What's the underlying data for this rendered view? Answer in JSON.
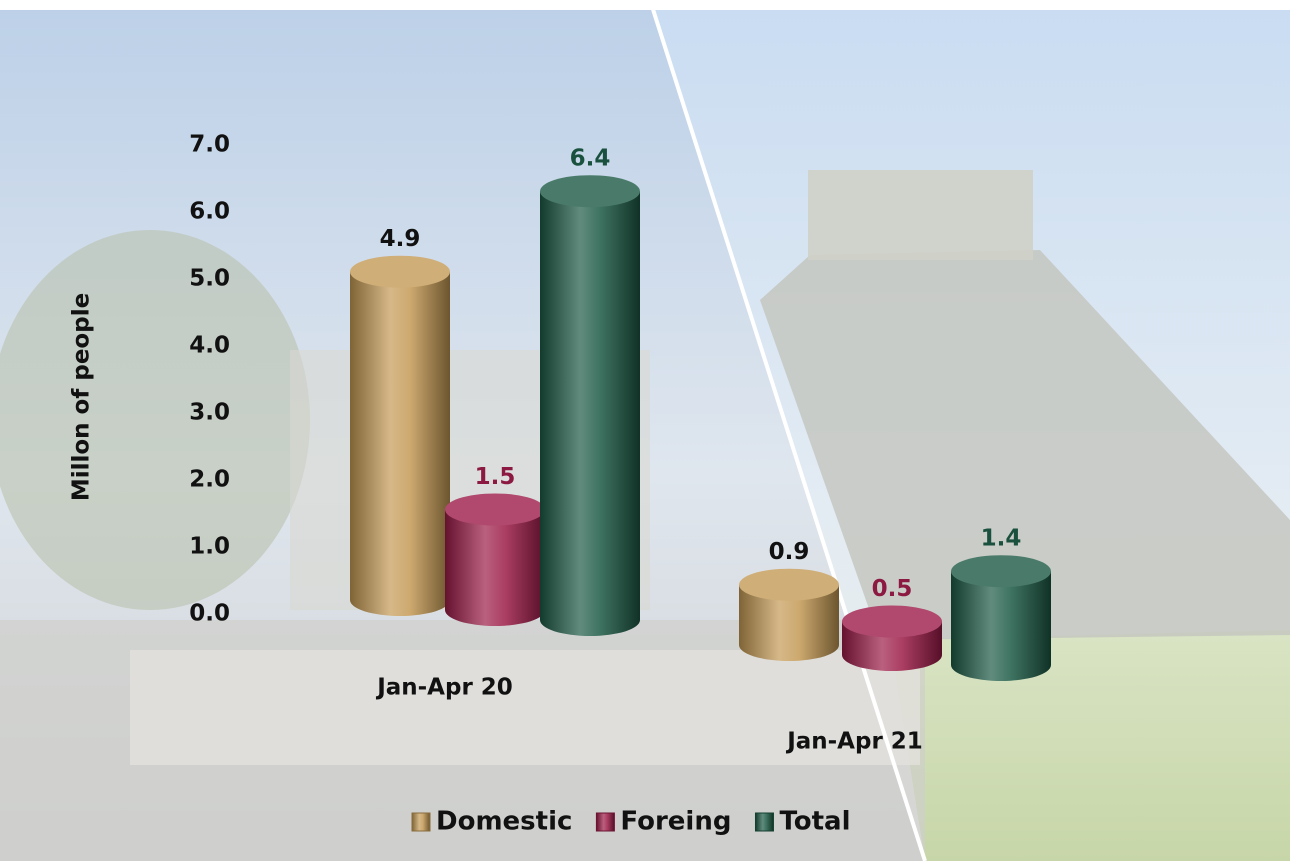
{
  "chart_data": {
    "type": "bar",
    "y_label": "Millon of people",
    "categories": [
      "Jan-Apr 20",
      "Jan-Apr 21"
    ],
    "series": [
      {
        "name": "Domestic",
        "color": "#c49a55",
        "values": [
          4.9,
          0.9
        ]
      },
      {
        "name": "Foreing",
        "color": "#9c1c48",
        "values": [
          1.5,
          0.5
        ]
      },
      {
        "name": "Total",
        "color": "#1d5a45",
        "values": [
          6.4,
          1.4
        ]
      }
    ],
    "ylim": [
      0,
      7
    ],
    "yticks": [
      {
        "value": 0,
        "label": "0.0"
      },
      {
        "value": 1,
        "label": "1.0"
      },
      {
        "value": 2,
        "label": "2.0"
      },
      {
        "value": 3,
        "label": "3.0"
      },
      {
        "value": 4,
        "label": "4.0"
      },
      {
        "value": 5,
        "label": "5.0"
      },
      {
        "value": 6,
        "label": "6.0"
      },
      {
        "value": 7,
        "label": "7.0"
      }
    ],
    "legend": "bottom"
  }
}
